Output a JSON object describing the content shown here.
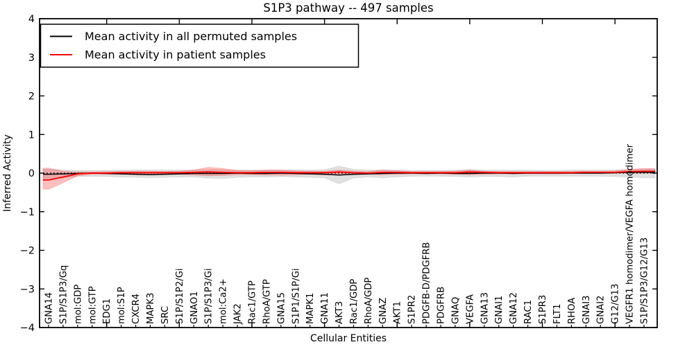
{
  "chart_data": {
    "type": "line",
    "title": "S1P3 pathway -- 497 samples",
    "xlabel": "Cellular Entities",
    "ylabel": "Inferred Activity",
    "ylim": [
      -4,
      4
    ],
    "ytick_labels": [
      "−4",
      "−3",
      "−2",
      "−1",
      "0",
      "1",
      "2",
      "3",
      "4"
    ],
    "ytick_values": [
      -4,
      -3,
      -2,
      -1,
      0,
      1,
      2,
      3,
      4
    ],
    "grid": false,
    "legend_position": "upper left",
    "zero_line": {
      "value": 0,
      "style": "dotted",
      "color": "#000000"
    },
    "xtick_major_indices": [
      4,
      9,
      14,
      19,
      24,
      29,
      34,
      39
    ],
    "categories": [
      "GNA14",
      "S1P/S1P3/Gq",
      "mol:GDP",
      "mol:GTP",
      "EDG1",
      "mol:S1P",
      "CXCR4",
      "MAPK3",
      "SRC",
      "S1P/S1P2/Gi",
      "GNAO1",
      "S1P/S1P3/Gi",
      "mol:Ca2+",
      "JAK2",
      "Rac1/GTP",
      "RhoA/GTP",
      "GNA15",
      "S1P1/S1P/Gi",
      "MAPK1",
      "GNA11",
      "AKT3",
      "Rac1/GDP",
      "RhoA/GDP",
      "GNAZ",
      "AKT1",
      "S1PR2",
      "PDGFB-D/PDGFRB",
      "PDGFRB",
      "GNAQ",
      "VEGFA",
      "GNA13",
      "GNAI1",
      "GNA12",
      "RAC1",
      "S1PR3",
      "FLT1",
      "RHOA",
      "GNAI3",
      "GNAI2",
      "G12/G13",
      "VEGFR1 homodimer/VEGFA homodimer",
      "S1P/S1P3/G12/G13"
    ],
    "series": [
      {
        "name": "Mean activity in all permuted samples",
        "color": "#000000",
        "band_color": "#000000",
        "band_opacity": 0.12,
        "line_width": 1.5,
        "values": [
          -0.03,
          -0.02,
          -0.01,
          0,
          -0.01,
          -0.02,
          -0.03,
          -0.04,
          -0.03,
          -0.02,
          -0.01,
          -0.01,
          -0.01,
          0,
          -0.01,
          -0.01,
          0,
          -0.01,
          -0.02,
          -0.03,
          -0.05,
          -0.03,
          -0.02,
          -0.01,
          0,
          0,
          -0.01,
          0,
          -0.01,
          -0.01,
          0,
          0,
          -0.01,
          0,
          0,
          0,
          0,
          0,
          0,
          0.01,
          0.02,
          0.02
        ],
        "band_upper": [
          0.1,
          0.08,
          0.07,
          0.07,
          0.07,
          0.08,
          0.08,
          0.08,
          0.08,
          0.08,
          0.08,
          0.09,
          0.09,
          0.08,
          0.08,
          0.08,
          0.08,
          0.08,
          0.08,
          0.09,
          0.18,
          0.1,
          0.08,
          0.08,
          0.08,
          0.07,
          0.07,
          0.07,
          0.08,
          0.09,
          0.08,
          0.08,
          0.08,
          0.08,
          0.07,
          0.07,
          0.08,
          0.08,
          0.08,
          0.08,
          0.09,
          0.1
        ],
        "band_lower": [
          -0.18,
          -0.12,
          -0.09,
          -0.08,
          -0.09,
          -0.1,
          -0.11,
          -0.12,
          -0.11,
          -0.1,
          -0.1,
          -0.13,
          -0.14,
          -0.11,
          -0.1,
          -0.1,
          -0.09,
          -0.1,
          -0.11,
          -0.12,
          -0.28,
          -0.13,
          -0.1,
          -0.12,
          -0.1,
          -0.08,
          -0.08,
          -0.08,
          -0.09,
          -0.1,
          -0.09,
          -0.09,
          -0.1,
          -0.08,
          -0.08,
          -0.08,
          -0.08,
          -0.08,
          -0.08,
          -0.09,
          -0.1,
          -0.12
        ]
      },
      {
        "name": "Mean activity in patient samples",
        "color": "#ff0000",
        "band_color": "#ff0000",
        "band_opacity": 0.25,
        "line_width": 1.8,
        "values": [
          -0.18,
          -0.1,
          -0.02,
          0,
          0,
          0.01,
          0.01,
          0.01,
          0.01,
          0.01,
          0.02,
          0.03,
          0.02,
          0.01,
          0.01,
          0.02,
          0.02,
          0.01,
          0.01,
          0.01,
          0.03,
          0.01,
          0,
          0.02,
          0.02,
          0.01,
          0.01,
          0.01,
          0.01,
          0.03,
          0.02,
          0.01,
          0.01,
          0.01,
          0.01,
          0.01,
          0.01,
          0.02,
          0.02,
          0.02,
          0.04,
          0.05
        ],
        "band_upper": [
          0.13,
          0.05,
          0.03,
          0.03,
          0.04,
          0.04,
          0.05,
          0.05,
          0.04,
          0.05,
          0.08,
          0.15,
          0.12,
          0.07,
          0.06,
          0.08,
          0.08,
          0.06,
          0.05,
          0.05,
          0.08,
          0.05,
          0.04,
          0.08,
          0.06,
          0.04,
          0.04,
          0.04,
          0.05,
          0.08,
          0.05,
          0.04,
          0.04,
          0.04,
          0.04,
          0.04,
          0.04,
          0.05,
          0.05,
          0.06,
          0.1,
          0.12
        ],
        "band_lower": [
          -0.42,
          -0.25,
          -0.07,
          -0.03,
          -0.03,
          -0.03,
          -0.04,
          -0.04,
          -0.03,
          -0.03,
          -0.05,
          -0.07,
          -0.06,
          -0.04,
          -0.04,
          -0.05,
          -0.05,
          -0.04,
          -0.03,
          -0.04,
          -0.05,
          -0.04,
          -0.03,
          -0.04,
          -0.03,
          -0.02,
          -0.02,
          -0.02,
          -0.03,
          -0.04,
          -0.03,
          -0.02,
          -0.02,
          -0.02,
          -0.02,
          -0.02,
          -0.01,
          -0.01,
          -0.01,
          0,
          0,
          0
        ]
      }
    ]
  }
}
